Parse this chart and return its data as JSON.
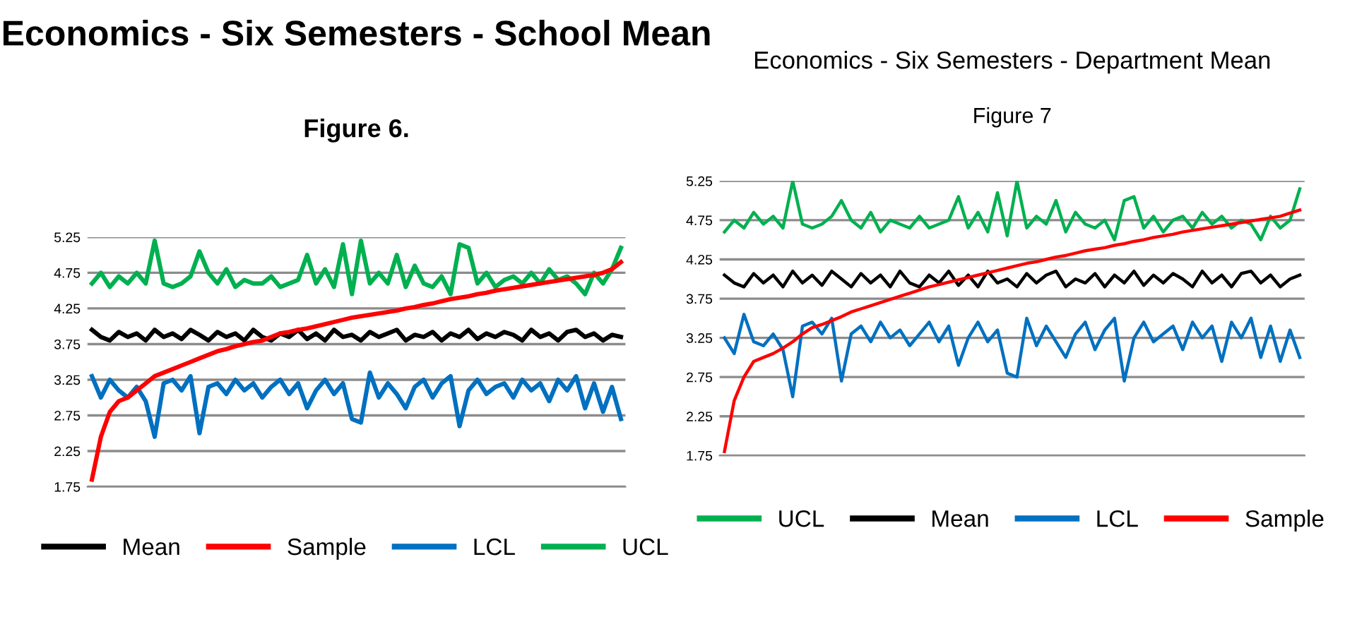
{
  "chart_data": [
    {
      "type": "line",
      "title": "Economics - Six Semesters - School Mean",
      "subtitle": "Figure 6.",
      "categories": [
        null,
        null,
        null,
        null,
        null,
        null,
        null,
        null,
        null,
        null,
        null,
        null,
        null,
        null,
        null,
        null,
        null,
        null,
        null,
        null,
        null,
        null,
        null,
        null,
        null,
        null,
        null,
        null,
        null,
        null,
        null,
        null,
        null,
        null,
        null,
        null,
        null,
        null,
        null,
        null,
        null,
        null,
        null,
        null,
        null,
        null,
        null,
        null,
        null,
        null,
        null,
        null,
        null,
        null,
        null,
        null,
        null,
        null,
        null,
        null
      ],
      "ylim": [
        1.75,
        5.25
      ],
      "yticks": [
        1.75,
        2.25,
        2.75,
        3.25,
        3.75,
        4.25,
        4.75,
        5.25
      ],
      "grid": "y",
      "legend": "bottom",
      "tick_labels": "y",
      "marker": "none",
      "line_style": "solid",
      "series": [
        {
          "name": "Mean",
          "color": "#000000",
          "values": [
            3.95,
            3.85,
            3.8,
            3.92,
            3.85,
            3.9,
            3.8,
            3.95,
            3.85,
            3.9,
            3.82,
            3.95,
            3.88,
            3.8,
            3.92,
            3.85,
            3.9,
            3.8,
            3.95,
            3.85,
            3.8,
            3.9,
            3.85,
            3.95,
            3.82,
            3.9,
            3.8,
            3.95,
            3.85,
            3.88,
            3.8,
            3.92,
            3.85,
            3.9,
            3.95,
            3.8,
            3.88,
            3.85,
            3.92,
            3.8,
            3.9,
            3.85,
            3.95,
            3.82,
            3.9,
            3.85,
            3.92,
            3.88,
            3.8,
            3.95,
            3.85,
            3.9,
            3.8,
            3.92,
            3.95,
            3.85,
            3.9,
            3.8,
            3.88,
            3.85
          ]
        },
        {
          "name": "Sample",
          "color": "#ff0000",
          "values": [
            1.85,
            2.45,
            2.8,
            2.95,
            3.0,
            3.1,
            3.2,
            3.3,
            3.35,
            3.4,
            3.45,
            3.5,
            3.55,
            3.6,
            3.65,
            3.68,
            3.72,
            3.75,
            3.78,
            3.8,
            3.85,
            3.9,
            3.92,
            3.95,
            3.97,
            4.0,
            4.03,
            4.06,
            4.09,
            4.12,
            4.14,
            4.16,
            4.18,
            4.2,
            4.22,
            4.25,
            4.27,
            4.3,
            4.32,
            4.35,
            4.38,
            4.4,
            4.42,
            4.45,
            4.47,
            4.5,
            4.52,
            4.54,
            4.56,
            4.58,
            4.6,
            4.62,
            4.64,
            4.66,
            4.68,
            4.7,
            4.72,
            4.75,
            4.8,
            4.9
          ]
        },
        {
          "name": "LCL",
          "color": "#0070c0",
          "values": [
            3.3,
            3.0,
            3.25,
            3.1,
            3.0,
            3.15,
            2.95,
            2.45,
            3.2,
            3.25,
            3.1,
            3.3,
            2.5,
            3.15,
            3.2,
            3.05,
            3.25,
            3.1,
            3.2,
            3.0,
            3.15,
            3.25,
            3.05,
            3.2,
            2.85,
            3.1,
            3.25,
            3.05,
            3.2,
            2.7,
            2.65,
            3.35,
            3.0,
            3.2,
            3.05,
            2.85,
            3.15,
            3.25,
            3.0,
            3.2,
            3.3,
            2.6,
            3.1,
            3.25,
            3.05,
            3.15,
            3.2,
            3.0,
            3.25,
            3.1,
            3.2,
            2.95,
            3.25,
            3.1,
            3.3,
            2.85,
            3.2,
            2.8,
            3.15,
            2.7
          ]
        },
        {
          "name": "UCL",
          "color": "#00b050",
          "values": [
            4.6,
            4.75,
            4.55,
            4.7,
            4.6,
            4.75,
            4.6,
            5.2,
            4.6,
            4.55,
            4.6,
            4.7,
            5.05,
            4.75,
            4.6,
            4.8,
            4.55,
            4.65,
            4.6,
            4.6,
            4.7,
            4.55,
            4.6,
            4.65,
            5.0,
            4.6,
            4.8,
            4.55,
            5.15,
            4.45,
            5.2,
            4.6,
            4.75,
            4.6,
            5.0,
            4.55,
            4.85,
            4.6,
            4.55,
            4.7,
            4.45,
            5.15,
            5.1,
            4.6,
            4.75,
            4.55,
            4.65,
            4.7,
            4.6,
            4.75,
            4.6,
            4.8,
            4.65,
            4.7,
            4.6,
            4.45,
            4.75,
            4.6,
            4.8,
            5.1
          ]
        }
      ]
    },
    {
      "type": "line",
      "title": "Economics - Six Semesters - Department Mean",
      "subtitle": "Figure 7",
      "categories": [
        null,
        null,
        null,
        null,
        null,
        null,
        null,
        null,
        null,
        null,
        null,
        null,
        null,
        null,
        null,
        null,
        null,
        null,
        null,
        null,
        null,
        null,
        null,
        null,
        null,
        null,
        null,
        null,
        null,
        null,
        null,
        null,
        null,
        null,
        null,
        null,
        null,
        null,
        null,
        null,
        null,
        null,
        null,
        null,
        null,
        null,
        null,
        null,
        null,
        null,
        null,
        null,
        null,
        null,
        null,
        null,
        null,
        null,
        null,
        null
      ],
      "ylim": [
        1.75,
        5.25
      ],
      "yticks": [
        1.75,
        2.25,
        2.75,
        3.25,
        3.75,
        4.25,
        4.75,
        5.25
      ],
      "grid": "y",
      "legend": "bottom",
      "tick_labels": "y",
      "marker": "none",
      "line_style": "solid",
      "series": [
        {
          "name": "UCL",
          "color": "#00b050",
          "values": [
            4.6,
            4.75,
            4.65,
            4.85,
            4.7,
            4.8,
            4.65,
            5.25,
            4.7,
            4.65,
            4.7,
            4.8,
            5.0,
            4.75,
            4.65,
            4.85,
            4.6,
            4.75,
            4.7,
            4.65,
            4.8,
            4.65,
            4.7,
            4.75,
            5.05,
            4.65,
            4.85,
            4.6,
            5.1,
            4.55,
            5.25,
            4.65,
            4.8,
            4.7,
            5.0,
            4.6,
            4.85,
            4.7,
            4.65,
            4.75,
            4.5,
            5.0,
            5.05,
            4.65,
            4.8,
            4.6,
            4.75,
            4.8,
            4.65,
            4.85,
            4.7,
            4.8,
            4.65,
            4.75,
            4.7,
            4.5,
            4.8,
            4.65,
            4.75,
            5.15
          ]
        },
        {
          "name": "Mean",
          "color": "#000000",
          "values": [
            4.05,
            3.95,
            3.9,
            4.07,
            3.95,
            4.05,
            3.9,
            4.1,
            3.95,
            4.05,
            3.92,
            4.1,
            4.0,
            3.9,
            4.07,
            3.95,
            4.05,
            3.9,
            4.1,
            3.95,
            3.9,
            4.05,
            3.95,
            4.1,
            3.92,
            4.05,
            3.9,
            4.1,
            3.95,
            4.0,
            3.9,
            4.07,
            3.95,
            4.05,
            4.1,
            3.9,
            4.0,
            3.95,
            4.07,
            3.9,
            4.05,
            3.95,
            4.1,
            3.92,
            4.05,
            3.95,
            4.07,
            4.0,
            3.9,
            4.1,
            3.95,
            4.05,
            3.9,
            4.07,
            4.1,
            3.95,
            4.05,
            3.9,
            4.0,
            4.05
          ]
        },
        {
          "name": "LCL",
          "color": "#0070c0",
          "values": [
            3.25,
            3.05,
            3.55,
            3.2,
            3.15,
            3.3,
            3.1,
            2.5,
            3.4,
            3.45,
            3.3,
            3.5,
            2.7,
            3.3,
            3.4,
            3.2,
            3.45,
            3.25,
            3.35,
            3.15,
            3.3,
            3.45,
            3.2,
            3.4,
            2.9,
            3.25,
            3.45,
            3.2,
            3.35,
            2.8,
            2.75,
            3.5,
            3.15,
            3.4,
            3.2,
            3.0,
            3.3,
            3.45,
            3.1,
            3.35,
            3.5,
            2.7,
            3.25,
            3.45,
            3.2,
            3.3,
            3.4,
            3.1,
            3.45,
            3.25,
            3.4,
            2.95,
            3.45,
            3.25,
            3.5,
            3.0,
            3.4,
            2.95,
            3.35,
            3.0
          ]
        },
        {
          "name": "Sample",
          "color": "#ff0000",
          "values": [
            1.8,
            2.45,
            2.75,
            2.95,
            3.0,
            3.05,
            3.12,
            3.2,
            3.3,
            3.38,
            3.42,
            3.47,
            3.52,
            3.58,
            3.62,
            3.66,
            3.7,
            3.74,
            3.78,
            3.82,
            3.86,
            3.9,
            3.93,
            3.96,
            3.99,
            4.02,
            4.05,
            4.08,
            4.11,
            4.14,
            4.17,
            4.2,
            4.22,
            4.25,
            4.28,
            4.3,
            4.33,
            4.36,
            4.38,
            4.4,
            4.43,
            4.45,
            4.48,
            4.5,
            4.53,
            4.55,
            4.57,
            4.6,
            4.62,
            4.64,
            4.66,
            4.68,
            4.7,
            4.72,
            4.74,
            4.76,
            4.78,
            4.8,
            4.84,
            4.88
          ]
        }
      ]
    }
  ]
}
